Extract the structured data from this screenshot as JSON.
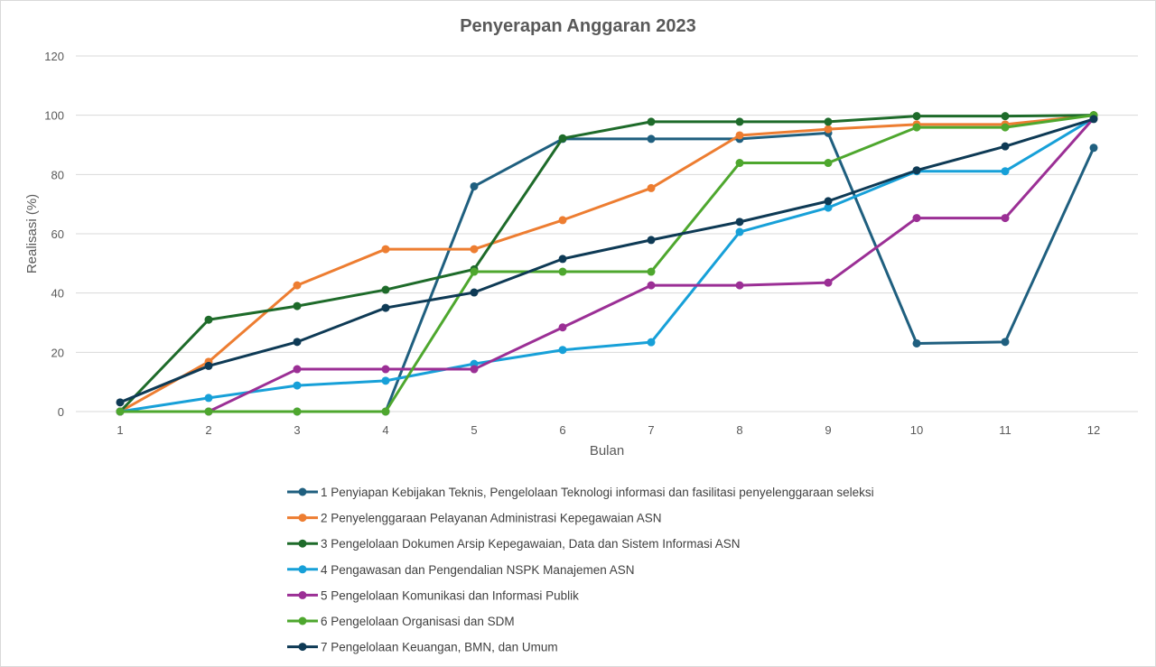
{
  "chart_data": {
    "type": "line",
    "title": "Penyerapan Anggaran 2023",
    "xlabel": "Bulan",
    "ylabel": "Realisasi (%)",
    "x": [
      1,
      2,
      3,
      4,
      5,
      6,
      7,
      8,
      9,
      10,
      11,
      12
    ],
    "ylim": [
      0,
      120
    ],
    "yticks": [
      0,
      20,
      40,
      60,
      80,
      100,
      120
    ],
    "grid": true,
    "legend_position": "bottom",
    "series": [
      {
        "name": "1 Penyiapan Kebijakan Teknis, Pengelolaan Teknologi informasi dan fasilitasi penyelenggaraan seleksi",
        "color": "#1f5f7f",
        "values": [
          0,
          0,
          0,
          0,
          76,
          92,
          92,
          92,
          94,
          23,
          23.5,
          89
        ]
      },
      {
        "name": "2 Penyelenggaraan Pelayanan Administrasi Kepegawaian ASN",
        "color": "#ed7d31",
        "values": [
          0,
          16.8,
          42.6,
          54.8,
          54.8,
          64.6,
          75.4,
          93.2,
          95.3,
          96.9,
          96.9,
          100
        ]
      },
      {
        "name": "3 Pengelolaan Dokumen Arsip Kepegawaian, Data dan Sistem Informasi ASN",
        "color": "#1e6b2a",
        "values": [
          0,
          31,
          35.6,
          41.1,
          48,
          92.2,
          97.8,
          97.8,
          97.8,
          99.7,
          99.7,
          100
        ]
      },
      {
        "name": "4 Pengawasan dan Pengendalian NSPK Manajemen ASN",
        "color": "#17a0d8",
        "values": [
          0,
          4.6,
          8.8,
          10.4,
          16.1,
          20.8,
          23.4,
          60.6,
          68.8,
          81.1,
          81.1,
          99
        ]
      },
      {
        "name": "5 Pengelolaan Komunikasi dan Informasi Publik",
        "color": "#9b2f95",
        "values": [
          0,
          0,
          14.3,
          14.3,
          14.3,
          28.4,
          42.6,
          42.6,
          43.5,
          65.3,
          65.3,
          99
        ]
      },
      {
        "name": "6 Pengelolaan Organisasi dan SDM",
        "color": "#4ea72e",
        "values": [
          0,
          0,
          0,
          0,
          47.2,
          47.2,
          47.2,
          83.9,
          83.9,
          95.9,
          95.9,
          100
        ]
      },
      {
        "name": "7 Pengelolaan Keuangan, BMN, dan Umum",
        "color": "#0e3a55",
        "values": [
          3.1,
          15.4,
          23.5,
          35,
          40.2,
          51.5,
          57.9,
          64,
          71,
          81.4,
          89.5,
          98.7
        ]
      }
    ]
  }
}
